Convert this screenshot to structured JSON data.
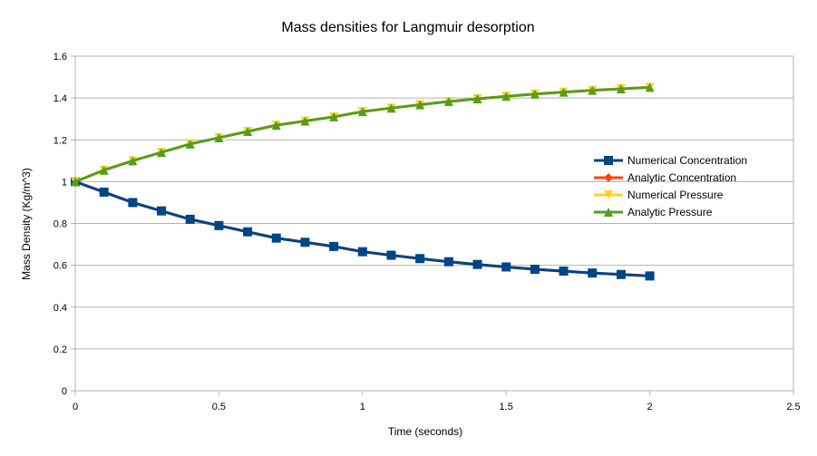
{
  "chart_data": {
    "type": "line",
    "title": "Mass densities for Langmuir desorption",
    "xlabel": "Time (seconds)",
    "ylabel": "Mass Density (Kg/m^3)",
    "xlim": [
      0,
      2.5
    ],
    "ylim": [
      0,
      1.6
    ],
    "x_ticks": [
      "0",
      "0.5",
      "1",
      "1.5",
      "2",
      "2.5"
    ],
    "y_ticks": [
      "0",
      "0.2",
      "0.4",
      "0.6",
      "0.8",
      "1",
      "1.2",
      "1.4",
      "1.6"
    ],
    "x_tick_values": [
      0,
      0.5,
      1,
      1.5,
      2,
      2.5
    ],
    "y_tick_values": [
      0,
      0.2,
      0.4,
      0.6,
      0.8,
      1,
      1.2,
      1.4,
      1.6
    ],
    "grid": "horizontal",
    "legend_position": "right",
    "x": [
      0,
      0.1,
      0.2,
      0.3,
      0.4,
      0.5,
      0.6,
      0.7,
      0.8,
      0.9,
      1.0,
      1.1,
      1.2,
      1.3,
      1.4,
      1.5,
      1.6,
      1.7,
      1.8,
      1.9,
      2.0
    ],
    "series": [
      {
        "name": "Numerical Concentration",
        "color": "#004586",
        "marker": "square",
        "values": [
          1.0,
          0.95,
          0.9,
          0.86,
          0.82,
          0.79,
          0.76,
          0.73,
          0.71,
          0.69,
          0.665,
          0.648,
          0.632,
          0.617,
          0.604,
          0.592,
          0.581,
          0.572,
          0.563,
          0.556,
          0.549
        ]
      },
      {
        "name": "Analytic Concentration",
        "color": "#ff420e",
        "marker": "diamond",
        "values": [
          1.0,
          0.95,
          0.9,
          0.86,
          0.82,
          0.79,
          0.76,
          0.73,
          0.71,
          0.69,
          0.665,
          0.648,
          0.632,
          0.617,
          0.604,
          0.592,
          0.581,
          0.572,
          0.563,
          0.556,
          0.549
        ]
      },
      {
        "name": "Numerical Pressure",
        "color": "#ffd320",
        "marker": "triangle-down",
        "values": [
          1.0,
          1.055,
          1.1,
          1.14,
          1.18,
          1.21,
          1.24,
          1.27,
          1.29,
          1.31,
          1.335,
          1.352,
          1.368,
          1.383,
          1.396,
          1.408,
          1.419,
          1.428,
          1.437,
          1.444,
          1.451
        ]
      },
      {
        "name": "Analytic Pressure",
        "color": "#579d1c",
        "marker": "triangle-up",
        "values": [
          1.0,
          1.055,
          1.1,
          1.14,
          1.18,
          1.21,
          1.24,
          1.27,
          1.29,
          1.31,
          1.335,
          1.352,
          1.368,
          1.383,
          1.396,
          1.408,
          1.419,
          1.428,
          1.437,
          1.444,
          1.451
        ]
      }
    ]
  }
}
